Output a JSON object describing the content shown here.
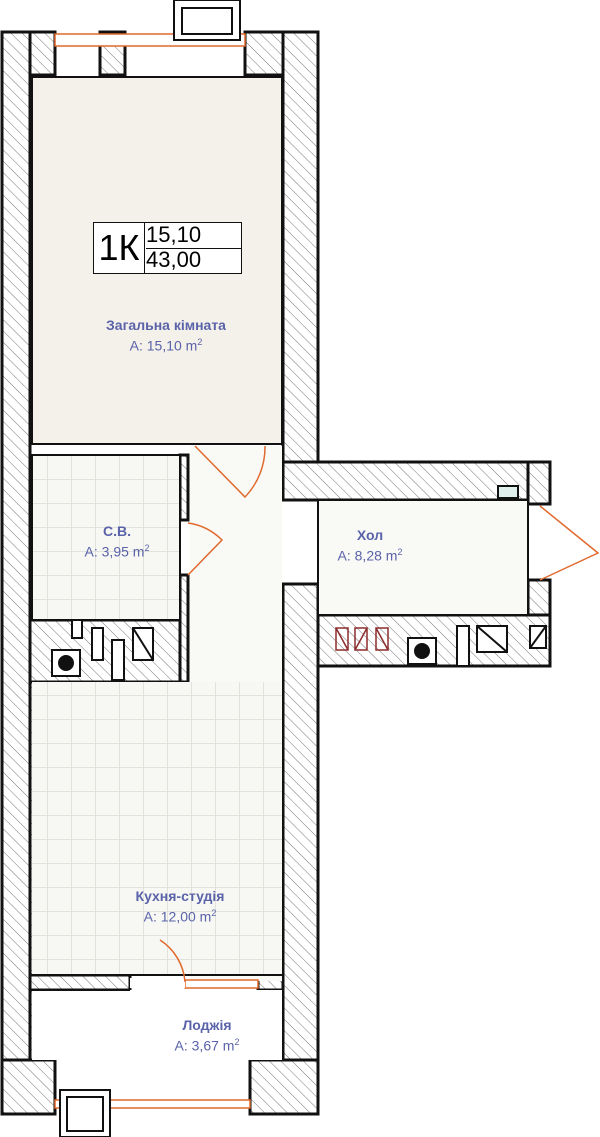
{
  "apartment": {
    "type": "1К",
    "living_area": "15,10",
    "total_area": "43,00"
  },
  "rooms": [
    {
      "name": "Загальна кімната",
      "area_prefix": "A: ",
      "area": "15,10",
      "unit": "m",
      "sup": "2"
    },
    {
      "name": "С.В.",
      "area_prefix": "A: ",
      "area": "3,95",
      "unit": "m",
      "sup": "2"
    },
    {
      "name": "Хол",
      "area_prefix": "A: ",
      "area": "8,28",
      "unit": "m",
      "sup": "2"
    },
    {
      "name": "Кухня-студія",
      "area_prefix": "A: ",
      "area": "12,00",
      "unit": "m",
      "sup": "2"
    },
    {
      "name": "Лоджія",
      "area_prefix": "A: ",
      "area": "3,67",
      "unit": "m",
      "sup": "2"
    }
  ],
  "colors": {
    "label": "#5a63a9",
    "door": "#e0692c",
    "wall": "#111111",
    "living_floor": "#f4f1ea",
    "tile_floor": "#f7f7f3"
  }
}
